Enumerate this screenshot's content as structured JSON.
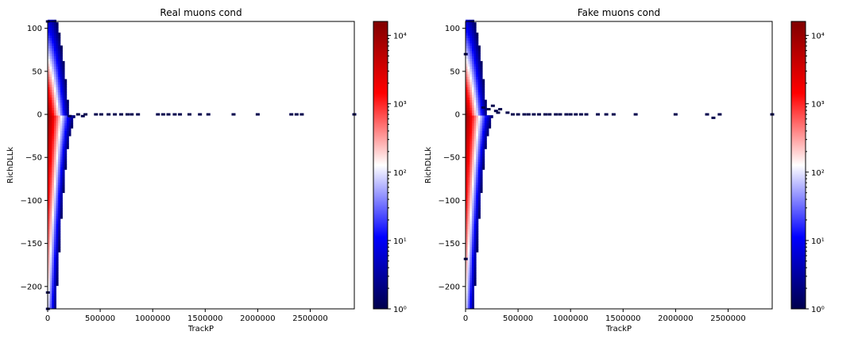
{
  "chart_data": [
    {
      "type": "heatmap",
      "title": "Real muons cond",
      "xlabel": "TrackP",
      "ylabel": "RichDLLk",
      "xlim": [
        0,
        2920000
      ],
      "ylim": [
        -226,
        108
      ],
      "xticks": [
        0,
        500000,
        1000000,
        1500000,
        2000000,
        2500000
      ],
      "xtick_labels": [
        "0",
        "500000",
        "1000000",
        "1500000",
        "2000000",
        "2500000"
      ],
      "yticks": [
        100,
        50,
        0,
        -50,
        -100,
        -150,
        -200
      ],
      "ytick_labels": [
        "100",
        "50",
        "0",
        "−50",
        "−100",
        "−150",
        "−200"
      ],
      "colorbar": {
        "scale": "log",
        "range": [
          1,
          16000
        ],
        "ticks": [
          1,
          10,
          100,
          1000,
          10000
        ],
        "tick_labels": [
          "10⁰",
          "10¹",
          "10²",
          "10³",
          "10⁴"
        ],
        "colormap": "seismic"
      },
      "tail_points": [
        [
          210000,
          -2
        ],
        [
          290000,
          0
        ],
        [
          335000,
          -2
        ],
        [
          360000,
          0
        ],
        [
          460000,
          0
        ],
        [
          510000,
          0
        ],
        [
          580000,
          0
        ],
        [
          640000,
          0
        ],
        [
          700000,
          0
        ],
        [
          760000,
          0
        ],
        [
          800000,
          0
        ],
        [
          860000,
          0
        ],
        [
          1050000,
          0
        ],
        [
          1100000,
          0
        ],
        [
          1150000,
          0
        ],
        [
          1210000,
          0
        ],
        [
          1260000,
          0
        ],
        [
          1350000,
          0
        ],
        [
          1450000,
          0
        ],
        [
          1530000,
          0
        ],
        [
          1770000,
          0
        ],
        [
          2000000,
          0
        ],
        [
          2320000,
          0
        ],
        [
          2370000,
          0
        ],
        [
          2420000,
          0
        ],
        [
          2920000,
          0
        ]
      ],
      "low_points": [
        [
          2000,
          108
        ],
        [
          2000,
          -207
        ],
        [
          2000,
          -226
        ]
      ]
    },
    {
      "type": "heatmap",
      "title": "Fake muons cond",
      "xlabel": "TrackP",
      "ylabel": "RichDLLk",
      "xlim": [
        0,
        2920000
      ],
      "ylim": [
        -226,
        108
      ],
      "xticks": [
        0,
        500000,
        1000000,
        1500000,
        2000000,
        2500000
      ],
      "xtick_labels": [
        "0",
        "500000",
        "1000000",
        "1500000",
        "2000000",
        "2500000"
      ],
      "yticks": [
        100,
        50,
        0,
        -50,
        -100,
        -150,
        -200
      ],
      "ytick_labels": [
        "100",
        "50",
        "0",
        "−50",
        "−100",
        "−150",
        "−200"
      ],
      "colorbar": {
        "scale": "log",
        "range": [
          1,
          16000
        ],
        "ticks": [
          1,
          10,
          100,
          1000,
          10000
        ],
        "tick_labels": [
          "10⁰",
          "10¹",
          "10²",
          "10³",
          "10⁴"
        ],
        "colormap": "seismic"
      },
      "tail_points": [
        [
          170000,
          8
        ],
        [
          220000,
          6
        ],
        [
          260000,
          10
        ],
        [
          290000,
          4
        ],
        [
          310000,
          2
        ],
        [
          330000,
          6
        ],
        [
          400000,
          2
        ],
        [
          450000,
          0
        ],
        [
          500000,
          0
        ],
        [
          560000,
          0
        ],
        [
          600000,
          0
        ],
        [
          650000,
          0
        ],
        [
          700000,
          0
        ],
        [
          760000,
          0
        ],
        [
          800000,
          0
        ],
        [
          860000,
          0
        ],
        [
          900000,
          0
        ],
        [
          960000,
          0
        ],
        [
          1000000,
          0
        ],
        [
          1050000,
          0
        ],
        [
          1100000,
          0
        ],
        [
          1150000,
          0
        ],
        [
          1260000,
          0
        ],
        [
          1340000,
          0
        ],
        [
          1410000,
          0
        ],
        [
          1620000,
          0
        ],
        [
          2000000,
          0
        ],
        [
          2300000,
          0
        ],
        [
          2360000,
          -4
        ],
        [
          2420000,
          0
        ],
        [
          2920000,
          0
        ]
      ],
      "low_points": [
        [
          2000,
          70
        ],
        [
          2000,
          -168
        ]
      ]
    }
  ]
}
